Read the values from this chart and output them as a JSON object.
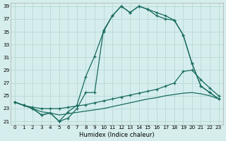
{
  "xlabel": "Humidex (Indice chaleur)",
  "xlim": [
    -0.5,
    23.5
  ],
  "ylim": [
    20.5,
    39.5
  ],
  "xticks": [
    0,
    1,
    2,
    3,
    4,
    5,
    6,
    7,
    8,
    9,
    10,
    11,
    12,
    13,
    14,
    15,
    16,
    17,
    18,
    19,
    20,
    21,
    22,
    23
  ],
  "yticks": [
    21,
    23,
    25,
    27,
    29,
    31,
    33,
    35,
    37,
    39
  ],
  "bg_color": "#d5eeed",
  "grid_color": "#b8d8d5",
  "line_color": "#1a6b5e",
  "curve1_x": [
    0,
    1,
    2,
    3,
    4,
    5,
    6,
    7,
    8,
    9,
    10,
    11,
    12,
    13,
    14,
    15,
    16,
    17,
    18,
    19,
    20,
    21,
    22,
    23
  ],
  "curve1_y": [
    24.0,
    23.5,
    23.0,
    22.0,
    22.3,
    21.0,
    22.5,
    23.5,
    28.0,
    31.2,
    35.0,
    37.5,
    39.0,
    38.0,
    39.0,
    38.5,
    38.0,
    37.5,
    36.8,
    34.5,
    30.0,
    26.5,
    25.5,
    24.5
  ],
  "curve2_x": [
    0,
    1,
    2,
    3,
    4,
    5,
    6,
    7,
    8,
    9,
    10,
    11,
    12,
    13,
    14,
    15,
    16,
    17,
    18,
    19,
    20,
    21,
    22,
    23
  ],
  "curve2_y": [
    24.0,
    23.5,
    23.0,
    22.0,
    22.3,
    21.0,
    21.5,
    23.0,
    25.5,
    25.5,
    35.2,
    37.5,
    39.0,
    38.0,
    39.0,
    38.5,
    37.5,
    37.0,
    36.8,
    34.5,
    30.0,
    26.5,
    25.5,
    24.5
  ],
  "diag1_x": [
    0,
    1,
    2,
    3,
    4,
    5,
    6,
    7,
    8,
    9,
    10,
    11,
    12,
    13,
    14,
    15,
    16,
    17,
    18,
    19,
    20,
    21,
    22,
    23
  ],
  "diag1_y": [
    24.0,
    23.5,
    23.2,
    23.0,
    23.0,
    23.0,
    23.2,
    23.4,
    23.6,
    23.9,
    24.2,
    24.5,
    24.8,
    25.1,
    25.4,
    25.7,
    26.0,
    26.5,
    27.0,
    28.8,
    29.0,
    27.5,
    26.2,
    25.0
  ],
  "diag2_x": [
    0,
    1,
    2,
    3,
    4,
    5,
    6,
    7,
    8,
    9,
    10,
    11,
    12,
    13,
    14,
    15,
    16,
    17,
    18,
    19,
    20,
    21,
    22,
    23
  ],
  "diag2_y": [
    24.0,
    23.5,
    23.0,
    22.5,
    22.3,
    22.0,
    22.2,
    22.4,
    22.6,
    22.8,
    23.0,
    23.3,
    23.6,
    23.9,
    24.2,
    24.5,
    24.7,
    25.0,
    25.2,
    25.4,
    25.5,
    25.3,
    25.0,
    24.5
  ]
}
